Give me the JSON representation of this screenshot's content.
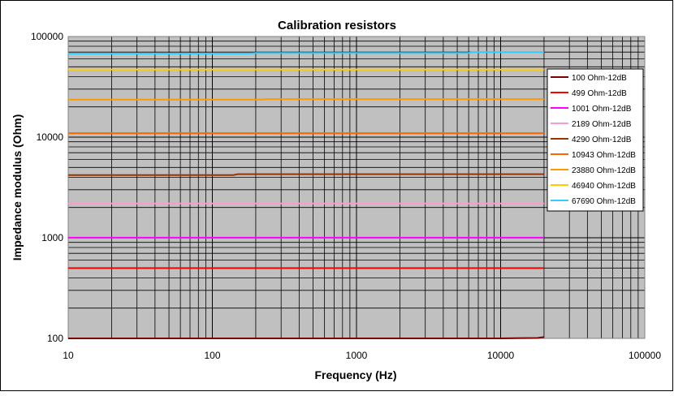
{
  "chart_data": {
    "type": "line",
    "title": "Calibration resistors",
    "xlabel": "Frequency (Hz)",
    "ylabel": "Impedance modulus (Ohm)",
    "x_scale": "log",
    "y_scale": "log",
    "xlim": [
      10,
      100000
    ],
    "ylim": [
      100,
      100000
    ],
    "x_ticks": [
      10,
      100,
      1000,
      10000,
      100000
    ],
    "x_tick_labels": [
      "10",
      "100",
      "1000",
      "10000",
      "100000"
    ],
    "y_ticks": [
      100,
      1000,
      10000,
      100000
    ],
    "y_tick_labels": [
      "100",
      "1000",
      "10000",
      "100000"
    ],
    "grid": true,
    "plot_background": "#c0c0c0",
    "legend_position": "right",
    "series": [
      {
        "name": "100 Ohm-12dB",
        "color": "#800000",
        "x": [
          10,
          100,
          1000,
          10000,
          18000,
          20000
        ],
        "y": [
          100,
          100,
          100,
          100,
          101,
          103
        ]
      },
      {
        "name": "499 Ohm-12dB",
        "color": "#ff0000",
        "x": [
          10,
          100,
          1000,
          10000,
          20000
        ],
        "y": [
          499,
          499,
          499,
          499,
          499
        ]
      },
      {
        "name": "1001 Ohm-12dB",
        "color": "#ff00ff",
        "x": [
          10,
          100,
          1000,
          10000,
          20000
        ],
        "y": [
          1001,
          1001,
          1001,
          1001,
          1001
        ]
      },
      {
        "name": "2189 Ohm-12dB",
        "color": "#ff99cc",
        "x": [
          10,
          100,
          1000,
          10000,
          20000
        ],
        "y": [
          2189,
          2189,
          2189,
          2189,
          2189
        ]
      },
      {
        "name": "4290 Ohm-12dB",
        "color": "#993300",
        "x": [
          10,
          140,
          150,
          1000,
          10000,
          20000
        ],
        "y": [
          4200,
          4200,
          4290,
          4290,
          4290,
          4290
        ]
      },
      {
        "name": "10943 Ohm-12dB",
        "color": "#ff6600",
        "x": [
          10,
          100,
          1000,
          10000,
          20000
        ],
        "y": [
          10943,
          10943,
          10943,
          10943,
          10943
        ]
      },
      {
        "name": "23880 Ohm-12dB",
        "color": "#ff9900",
        "x": [
          10,
          220,
          240,
          1000,
          10000,
          20000
        ],
        "y": [
          23600,
          23600,
          23880,
          23880,
          23880,
          23880
        ]
      },
      {
        "name": "46940 Ohm-12dB",
        "color": "#ffcc00",
        "x": [
          10,
          100,
          1000,
          10000,
          20000
        ],
        "y": [
          46940,
          46940,
          46940,
          46940,
          46940
        ]
      },
      {
        "name": "67690 Ohm-12dB",
        "color": "#33ccff",
        "x": [
          10,
          180,
          200,
          6000,
          6500,
          20000
        ],
        "y": [
          67690,
          67690,
          68700,
          68700,
          70000,
          70000
        ]
      }
    ]
  }
}
